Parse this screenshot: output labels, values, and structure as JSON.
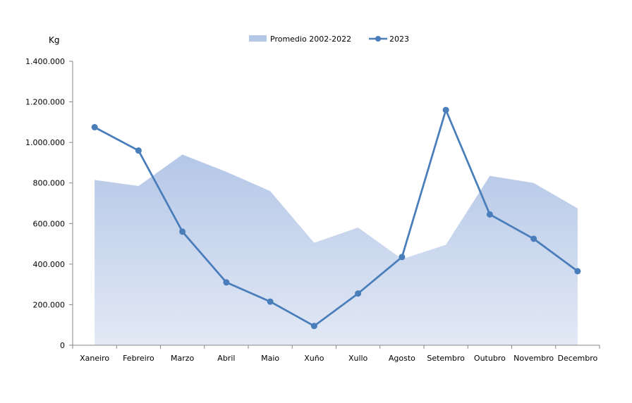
{
  "chart_data": {
    "type": "area",
    "ylabel": "Kg",
    "ylim": [
      0,
      1400000
    ],
    "yticks": [
      0,
      200000,
      400000,
      600000,
      800000,
      1000000,
      1200000,
      1400000
    ],
    "ytick_labels": [
      "0",
      "200.000",
      "400.000",
      "600.000",
      "800.000",
      "1.000.000",
      "1.200.000",
      "1.400.000"
    ],
    "categories": [
      "Xaneiro",
      "Febreiro",
      "Marzo",
      "Abril",
      "Maio",
      "Xuño",
      "Xullo",
      "Agosto",
      "Setembro",
      "Outubro",
      "Novembro",
      "Decembro"
    ],
    "grid": false,
    "legend_position": "top",
    "series": [
      {
        "name": "Promedio 2002-2022",
        "kind": "area",
        "color": "#b4c7e7",
        "values": [
          815000,
          785000,
          940000,
          855000,
          760000,
          505000,
          580000,
          425000,
          495000,
          835000,
          800000,
          675000
        ]
      },
      {
        "name": "2023",
        "kind": "line",
        "color": "#4a7ebb",
        "values": [
          1075000,
          960000,
          560000,
          310000,
          215000,
          95000,
          255000,
          435000,
          1160000,
          645000,
          525000,
          365000
        ]
      }
    ]
  }
}
